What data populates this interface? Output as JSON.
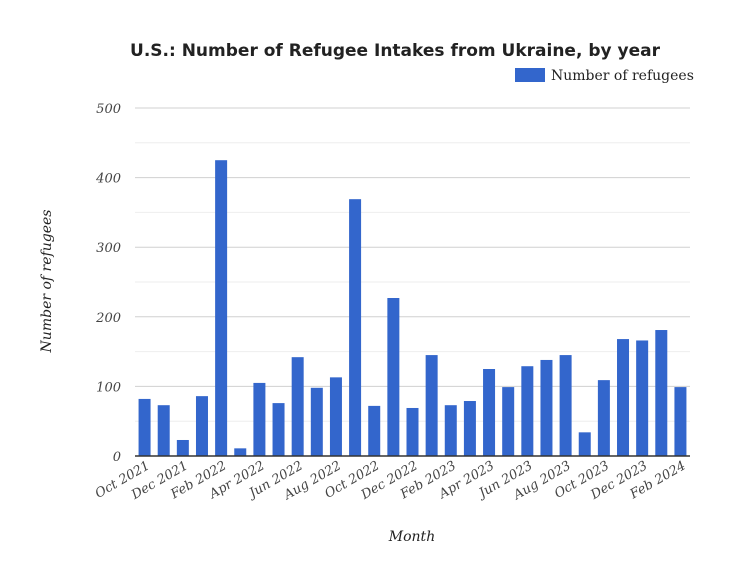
{
  "chart_data": {
    "type": "bar",
    "title": "U.S.: Number of Refugee Intakes from Ukraine, by year",
    "xlabel": "Month",
    "ylabel": "Number of refugees",
    "ylim": [
      0,
      500
    ],
    "yticks": [
      0,
      100,
      200,
      300,
      400,
      500
    ],
    "grid": true,
    "legend_position": "top-right",
    "categories": [
      "Oct 2021",
      "Nov 2021",
      "Dec 2021",
      "Jan 2022",
      "Feb 2022",
      "Mar 2022",
      "Apr 2022",
      "May 2022",
      "Jun 2022",
      "Jul 2022",
      "Aug 2022",
      "Sep 2022",
      "Oct 2022",
      "Nov 2022",
      "Dec 2022",
      "Jan 2023",
      "Feb 2023",
      "Mar 2023",
      "Apr 2023",
      "May 2023",
      "Jun 2023",
      "Jul 2023",
      "Aug 2023",
      "Sep 2023",
      "Oct 2023",
      "Nov 2023",
      "Dec 2023",
      "Jan 2024",
      "Feb 2024"
    ],
    "tick_labels": [
      "Oct 2021",
      "Dec 2021",
      "Feb 2022",
      "Apr 2022",
      "Jun 2022",
      "Aug 2022",
      "Oct 2022",
      "Dec 2022",
      "Feb 2023",
      "Apr 2023",
      "Jun 2023",
      "Aug 2023",
      "Oct 2023",
      "Dec 2023",
      "Feb 2024"
    ],
    "series": [
      {
        "name": "Number of refugees",
        "color": "#3366cc",
        "values": [
          82,
          73,
          23,
          86,
          425,
          11,
          105,
          76,
          142,
          98,
          113,
          369,
          72,
          227,
          69,
          145,
          73,
          79,
          125,
          99,
          129,
          138,
          145,
          34,
          109,
          168,
          166,
          181,
          99
        ]
      }
    ]
  }
}
